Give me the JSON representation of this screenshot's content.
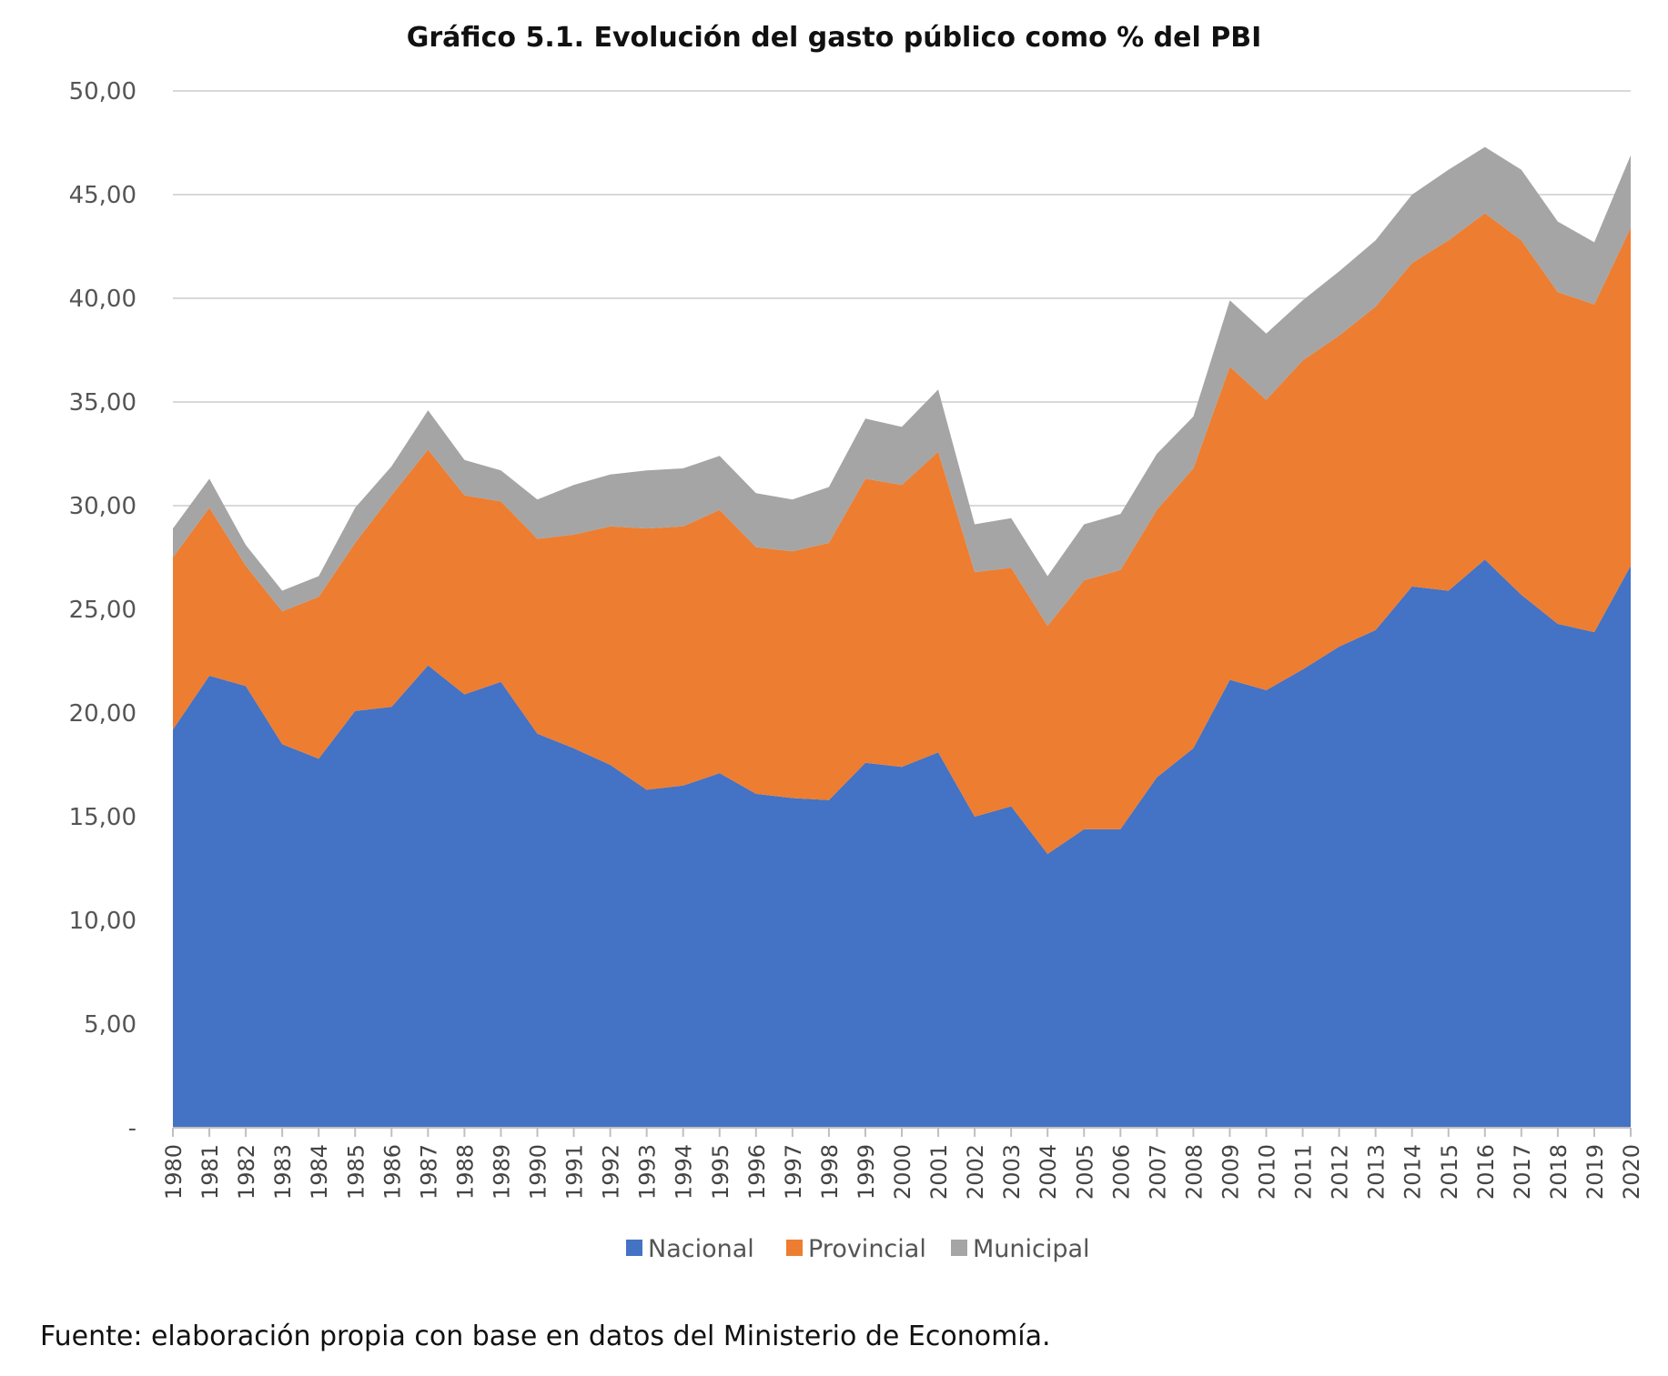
{
  "chart_data": {
    "type": "area",
    "stacked": true,
    "title": "Gráfico 5.1. Evolución del gasto público como % del PBI",
    "xlabel": "",
    "ylabel": "",
    "ylim": [
      0,
      50
    ],
    "yticks": [
      "-",
      "5,00",
      "10,00",
      "15,00",
      "20,00",
      "25,00",
      "30,00",
      "35,00",
      "40,00",
      "45,00",
      "50,00"
    ],
    "grid": true,
    "legend_position": "bottom",
    "x": [
      "1980",
      "1981",
      "1982",
      "1983",
      "1984",
      "1985",
      "1986",
      "1987",
      "1988",
      "1989",
      "1990",
      "1991",
      "1992",
      "1993",
      "1994",
      "1995",
      "1996",
      "1997",
      "1998",
      "1999",
      "2000",
      "2001",
      "2002",
      "2003",
      "2004",
      "2005",
      "2006",
      "2007",
      "2008",
      "2009",
      "2010",
      "2011",
      "2012",
      "2013",
      "2014",
      "2015",
      "2016",
      "2017",
      "2018",
      "2019",
      "2020"
    ],
    "series": [
      {
        "name": "Nacional",
        "color": "#4472C4",
        "values": [
          19.2,
          21.8,
          21.3,
          18.5,
          17.8,
          20.1,
          20.3,
          22.3,
          20.9,
          21.5,
          19.0,
          18.3,
          17.5,
          16.3,
          16.5,
          17.1,
          16.1,
          15.9,
          15.8,
          17.6,
          17.4,
          18.1,
          15.0,
          15.5,
          13.2,
          14.4,
          14.4,
          16.9,
          18.3,
          21.6,
          21.1,
          22.1,
          23.2,
          24.0,
          26.1,
          25.9,
          27.4,
          25.7,
          24.3,
          23.9,
          27.1
        ]
      },
      {
        "name": "Provincial",
        "color": "#ED7D31",
        "values": [
          8.3,
          8.1,
          5.8,
          6.4,
          7.8,
          8.1,
          10.2,
          10.4,
          9.6,
          8.7,
          9.4,
          10.3,
          11.5,
          12.6,
          12.5,
          12.7,
          11.9,
          11.9,
          12.4,
          13.7,
          13.6,
          14.5,
          11.8,
          11.5,
          11.0,
          12.0,
          12.5,
          12.9,
          13.5,
          15.1,
          14.0,
          14.9,
          15.0,
          15.6,
          15.6,
          16.9,
          16.7,
          17.1,
          16.0,
          15.8,
          16.3
        ]
      },
      {
        "name": "Municipal",
        "color": "#A5A5A5",
        "values": [
          1.4,
          1.4,
          1.0,
          1.0,
          1.0,
          1.7,
          1.4,
          1.9,
          1.7,
          1.5,
          1.9,
          2.4,
          2.5,
          2.8,
          2.8,
          2.6,
          2.6,
          2.5,
          2.7,
          2.9,
          2.8,
          3.0,
          2.3,
          2.4,
          2.4,
          2.7,
          2.7,
          2.7,
          2.5,
          3.2,
          3.2,
          2.9,
          3.1,
          3.2,
          3.3,
          3.4,
          3.2,
          3.4,
          3.4,
          3.0,
          3.5
        ]
      }
    ]
  },
  "source_note": "Fuente: elaboración propia con base en datos del Ministerio de Economía."
}
